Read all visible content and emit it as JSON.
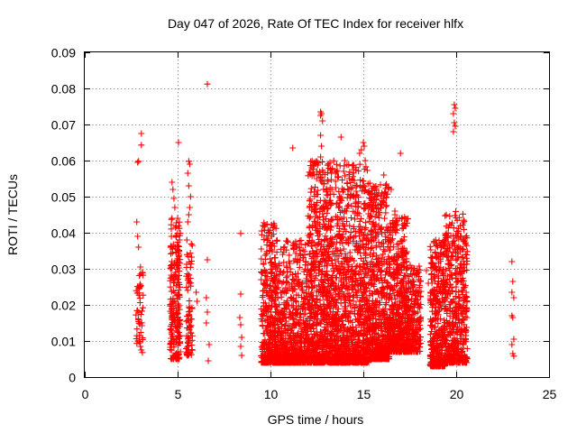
{
  "chart_data": {
    "type": "scatter",
    "title": "Day 047 of 2026, Rate Of TEC Index for receiver hlfx",
    "xlabel": "GPS time / hours",
    "ylabel": "ROTI / TECUs",
    "xlim": [
      0,
      25
    ],
    "ylim": [
      0,
      0.09
    ],
    "x_ticks": [
      0,
      5,
      10,
      15,
      20,
      25
    ],
    "x_tick_labels": [
      "0",
      "5",
      "10",
      "15",
      "20",
      "25"
    ],
    "y_ticks": [
      0,
      0.01,
      0.02,
      0.03,
      0.04,
      0.05,
      0.06,
      0.07,
      0.08,
      0.09
    ],
    "y_tick_labels": [
      "0",
      "0.01",
      "0.02",
      "0.03",
      "0.04",
      "0.05",
      "0.06",
      "0.07",
      "0.08",
      "0.09"
    ],
    "grid": true,
    "marker": "+",
    "color": "#ff0000",
    "series": [
      {
        "name": "ROTI",
        "explicit_points": [
          [
            2.85,
            0.0595
          ],
          [
            2.9,
            0.0598
          ],
          [
            3.05,
            0.0675
          ],
          [
            3.05,
            0.0643
          ],
          [
            2.8,
            0.043
          ],
          [
            2.85,
            0.039
          ],
          [
            2.9,
            0.036
          ],
          [
            3.0,
            0.0305
          ],
          [
            3.1,
            0.029
          ],
          [
            3.05,
            0.0075
          ],
          [
            3.1,
            0.0068
          ],
          [
            3.0,
            0.0085
          ],
          [
            4.7,
            0.054
          ],
          [
            4.75,
            0.052
          ],
          [
            4.8,
            0.0495
          ],
          [
            4.85,
            0.047
          ],
          [
            4.7,
            0.044
          ],
          [
            5.05,
            0.065
          ],
          [
            5.0,
            0.044
          ],
          [
            5.1,
            0.038
          ],
          [
            5.6,
            0.0598
          ],
          [
            5.65,
            0.059
          ],
          [
            5.55,
            0.0565
          ],
          [
            5.6,
            0.053
          ],
          [
            5.7,
            0.05
          ],
          [
            5.65,
            0.047
          ],
          [
            5.6,
            0.045
          ],
          [
            5.55,
            0.043
          ],
          [
            5.5,
            0.038
          ],
          [
            6.0,
            0.0235
          ],
          [
            6.05,
            0.021
          ],
          [
            6.6,
            0.0812
          ],
          [
            6.6,
            0.0325
          ],
          [
            6.55,
            0.022
          ],
          [
            6.6,
            0.018
          ],
          [
            6.55,
            0.015
          ],
          [
            6.7,
            0.009
          ],
          [
            6.65,
            0.0045
          ],
          [
            8.4,
            0.0398
          ],
          [
            8.4,
            0.023
          ],
          [
            8.35,
            0.0165
          ],
          [
            8.4,
            0.0145
          ],
          [
            8.45,
            0.011
          ],
          [
            8.4,
            0.0085
          ],
          [
            8.45,
            0.006
          ],
          [
            11.2,
            0.0635
          ],
          [
            12.7,
            0.0735
          ],
          [
            12.75,
            0.073
          ],
          [
            12.7,
            0.0725
          ],
          [
            12.8,
            0.071
          ],
          [
            12.7,
            0.067
          ],
          [
            12.75,
            0.064
          ],
          [
            12.7,
            0.061
          ],
          [
            13.8,
            0.0665
          ],
          [
            14.0,
            0.06
          ],
          [
            15.0,
            0.065
          ],
          [
            15.05,
            0.064
          ],
          [
            14.9,
            0.063
          ],
          [
            14.8,
            0.062
          ],
          [
            15.1,
            0.06
          ],
          [
            16.1,
            0.056
          ],
          [
            16.5,
            0.052
          ],
          [
            16.0,
            0.051
          ],
          [
            16.1,
            0.0495
          ],
          [
            16.7,
            0.046
          ],
          [
            16.8,
            0.044
          ],
          [
            16.75,
            0.043
          ],
          [
            17.0,
            0.062
          ],
          [
            17.7,
            0.0295
          ],
          [
            17.7,
            0.0255
          ],
          [
            17.8,
            0.0225
          ],
          [
            17.75,
            0.02
          ],
          [
            18.4,
            0.0295
          ],
          [
            18.5,
            0.026
          ],
          [
            18.9,
            0.038
          ],
          [
            19.0,
            0.036
          ],
          [
            19.5,
            0.039
          ],
          [
            19.9,
            0.0755
          ],
          [
            19.95,
            0.0745
          ],
          [
            19.85,
            0.073
          ],
          [
            19.9,
            0.0705
          ],
          [
            19.95,
            0.0695
          ],
          [
            19.85,
            0.068
          ],
          [
            20.4,
            0.0435
          ],
          [
            20.5,
            0.034
          ],
          [
            23.0,
            0.032
          ],
          [
            23.05,
            0.0265
          ],
          [
            23.0,
            0.0235
          ],
          [
            23.1,
            0.022
          ],
          [
            23.0,
            0.017
          ],
          [
            23.05,
            0.0165
          ],
          [
            23.1,
            0.0105
          ],
          [
            23.0,
            0.009
          ],
          [
            23.05,
            0.0065
          ],
          [
            23.1,
            0.0058
          ]
        ],
        "dense_clusters": [
          {
            "x_range": [
              2.75,
              3.15
            ],
            "y_range": [
              0.009,
              0.029
            ],
            "count": 45,
            "y_skew": 1.0
          },
          {
            "x_range": [
              4.6,
              5.15
            ],
            "y_range": [
              0.005,
              0.044
            ],
            "count": 210,
            "y_skew": 1.4
          },
          {
            "x_range": [
              5.45,
              5.8
            ],
            "y_range": [
              0.006,
              0.037
            ],
            "count": 75,
            "y_skew": 1.6
          },
          {
            "x_range": [
              9.5,
              10.3
            ],
            "y_range": [
              0.004,
              0.043
            ],
            "count": 340,
            "y_skew": 2.2
          },
          {
            "x_range": [
              10.2,
              12.0
            ],
            "y_range": [
              0.004,
              0.038
            ],
            "count": 700,
            "y_skew": 2.4
          },
          {
            "x_range": [
              12.0,
              13.5
            ],
            "y_range": [
              0.004,
              0.06
            ],
            "count": 850,
            "y_skew": 2.3
          },
          {
            "x_range": [
              13.5,
              15.3
            ],
            "y_range": [
              0.004,
              0.059
            ],
            "count": 950,
            "y_skew": 2.3
          },
          {
            "x_range": [
              15.3,
              16.4
            ],
            "y_range": [
              0.005,
              0.054
            ],
            "count": 600,
            "y_skew": 2.2
          },
          {
            "x_range": [
              16.4,
              17.4
            ],
            "y_range": [
              0.007,
              0.045
            ],
            "count": 520,
            "y_skew": 2.0
          },
          {
            "x_range": [
              17.4,
              18.1
            ],
            "y_range": [
              0.007,
              0.031
            ],
            "count": 200,
            "y_skew": 1.8
          },
          {
            "x_range": [
              18.6,
              19.4
            ],
            "y_range": [
              0.003,
              0.038
            ],
            "count": 360,
            "y_skew": 2.0
          },
          {
            "x_range": [
              19.4,
              20.6
            ],
            "y_range": [
              0.004,
              0.046
            ],
            "count": 480,
            "y_skew": 2.0
          }
        ]
      }
    ]
  }
}
